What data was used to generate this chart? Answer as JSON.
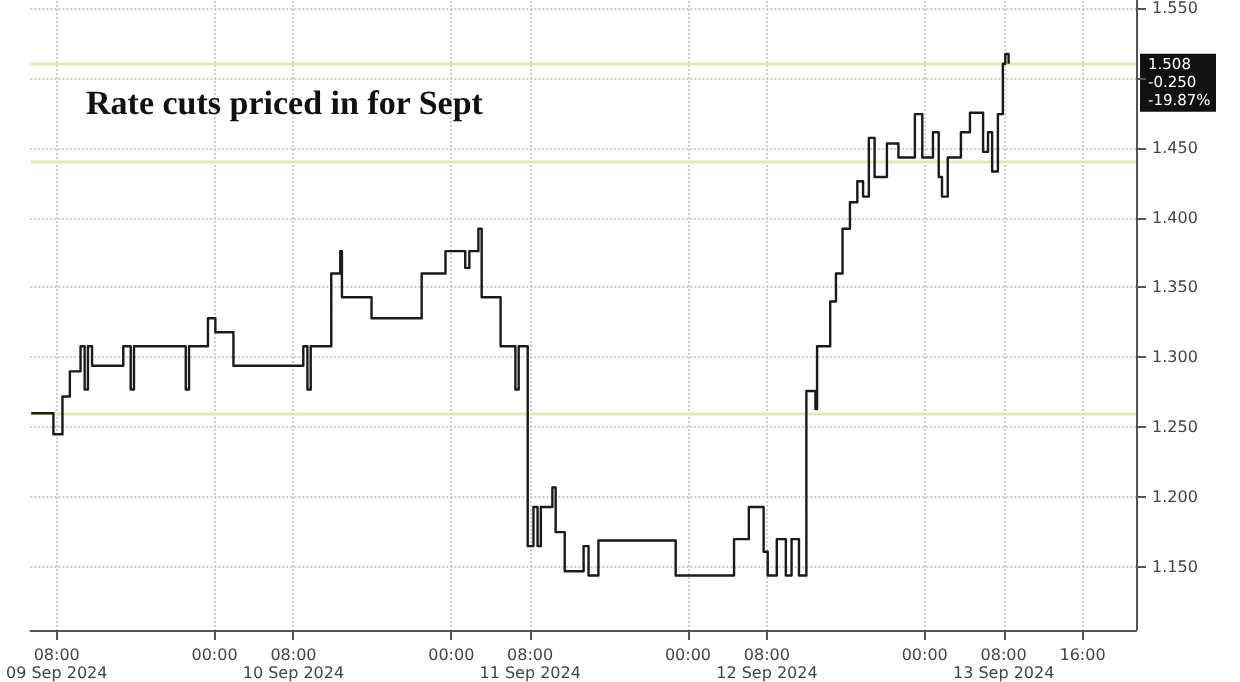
{
  "chart_data": {
    "type": "step",
    "title": "Rate cuts priced in for Sept",
    "x": [
      "2024-09-09T05:25",
      "2024-09-09T07:40",
      "2024-09-09T08:35",
      "2024-09-09T09:20",
      "2024-09-09T10:25",
      "2024-09-09T10:50",
      "2024-09-09T11:10",
      "2024-09-09T11:35",
      "2024-09-09T14:45",
      "2024-09-09T15:30",
      "2024-09-09T15:50",
      "2024-09-09T21:05",
      "2024-09-09T21:25",
      "2024-09-09T23:20",
      "2024-09-10T00:05",
      "2024-09-10T01:55",
      "2024-09-10T09:00",
      "2024-09-10T09:25",
      "2024-09-10T09:45",
      "2024-09-10T11:50",
      "2024-09-10T12:45",
      "2024-09-10T12:55",
      "2024-09-10T15:55",
      "2024-09-10T21:00",
      "2024-09-10T23:25",
      "2024-09-11T01:25",
      "2024-09-11T01:50",
      "2024-09-11T02:45",
      "2024-09-11T03:05",
      "2024-09-11T05:00",
      "2024-09-11T06:30",
      "2024-09-11T06:50",
      "2024-09-11T07:45",
      "2024-09-11T08:20",
      "2024-09-11T08:45",
      "2024-09-11T09:05",
      "2024-09-11T10:15",
      "2024-09-11T10:35",
      "2024-09-11T11:30",
      "2024-09-11T13:25",
      "2024-09-11T13:55",
      "2024-09-11T14:55",
      "2024-09-11T22:45",
      "2024-09-12T04:40",
      "2024-09-12T06:10",
      "2024-09-12T07:40",
      "2024-09-12T08:05",
      "2024-09-12T09:00",
      "2024-09-12T09:55",
      "2024-09-12T10:30",
      "2024-09-12T11:15",
      "2024-09-12T12:00",
      "2024-09-12T12:55",
      "2024-09-12T13:05",
      "2024-09-12T14:25",
      "2024-09-12T15:00",
      "2024-09-12T15:40",
      "2024-09-12T16:25",
      "2024-09-12T17:10",
      "2024-09-12T17:45",
      "2024-09-12T18:20",
      "2024-09-12T18:55",
      "2024-09-12T20:10",
      "2024-09-12T21:20",
      "2024-09-12T23:00",
      "2024-09-12T23:45",
      "2024-09-13T00:50",
      "2024-09-13T01:25",
      "2024-09-13T01:45",
      "2024-09-13T02:20",
      "2024-09-13T03:40",
      "2024-09-13T04:35",
      "2024-09-13T05:55",
      "2024-09-13T06:25",
      "2024-09-13T06:50",
      "2024-09-13T07:25",
      "2024-09-13T07:55",
      "2024-09-13T08:10",
      "2024-09-13T08:30"
    ],
    "series": [
      {
        "color": "#1a1a1a",
        "values": [
          1.26,
          1.245,
          1.272,
          1.29,
          1.308,
          1.277,
          1.308,
          1.294,
          1.308,
          1.277,
          1.308,
          1.277,
          1.308,
          1.328,
          1.318,
          1.294,
          1.308,
          1.277,
          1.308,
          1.36,
          1.376,
          1.343,
          1.328,
          1.36,
          1.376,
          1.364,
          1.376,
          1.392,
          1.343,
          1.308,
          1.277,
          1.308,
          1.165,
          1.193,
          1.165,
          1.193,
          1.207,
          1.175,
          1.147,
          1.165,
          1.144,
          1.169,
          1.144,
          1.17,
          1.193,
          1.161,
          1.144,
          1.17,
          1.144,
          1.17,
          1.144,
          1.276,
          1.263,
          1.308,
          1.34,
          1.36,
          1.392,
          1.411,
          1.426,
          1.415,
          1.457,
          1.429,
          1.453,
          1.443,
          1.474,
          1.443,
          1.461,
          1.429,
          1.415,
          1.443,
          1.461,
          1.475,
          1.447,
          1.461,
          1.433,
          1.474,
          1.51,
          1.517,
          1.51
        ]
      }
    ],
    "xlim": [
      "2024-09-09T05:20",
      "2024-09-13T21:25"
    ],
    "xticks": [
      {
        "value": "2024-09-09T08:00",
        "label": "08:00\n09 Sep 2024"
      },
      {
        "value": "2024-09-10T00:00",
        "label": "00:00"
      },
      {
        "value": "2024-09-10T08:00",
        "label": "08:00\n10 Sep 2024"
      },
      {
        "value": "2024-09-11T00:00",
        "label": "00:00"
      },
      {
        "value": "2024-09-11T08:00",
        "label": "08:00\n11 Sep 2024"
      },
      {
        "value": "2024-09-12T00:00",
        "label": "00:00"
      },
      {
        "value": "2024-09-12T08:00",
        "label": "08:00\n12 Sep 2024"
      },
      {
        "value": "2024-09-13T00:00",
        "label": "00:00"
      },
      {
        "value": "2024-09-13T08:00",
        "label": "08:00\n13 Sep 2024"
      },
      {
        "value": "2024-09-13T16:00",
        "label": "16:00"
      }
    ],
    "ylim": [
      1.105,
      1.555
    ],
    "yticks": [
      {
        "value": 1.15,
        "label": "1.150"
      },
      {
        "value": 1.2,
        "label": "1.200"
      },
      {
        "value": 1.25,
        "label": "1.250"
      },
      {
        "value": 1.3,
        "label": "1.300"
      },
      {
        "value": 1.35,
        "label": "1.350"
      },
      {
        "value": 1.4,
        "label": "1.400"
      },
      {
        "value": 1.45,
        "label": "1.450"
      },
      {
        "value": 1.5,
        "label": null
      },
      {
        "value": 1.55,
        "label": "1.550"
      }
    ],
    "ref_lines": [
      {
        "axis": "y",
        "value": 1.26,
        "color": "#e4e9b4"
      },
      {
        "axis": "y",
        "value": 1.44,
        "color": "#e4e9b4"
      },
      {
        "axis": "y",
        "value": 1.51,
        "color": "#e4e9b4"
      }
    ],
    "annotations": [
      {
        "text": "1.508",
        "x": "2024-09-13T21:25",
        "y": 1.51
      },
      "-0.250",
      "-19.87%"
    ],
    "grid": true,
    "line_style": "solid",
    "marker": "none"
  }
}
